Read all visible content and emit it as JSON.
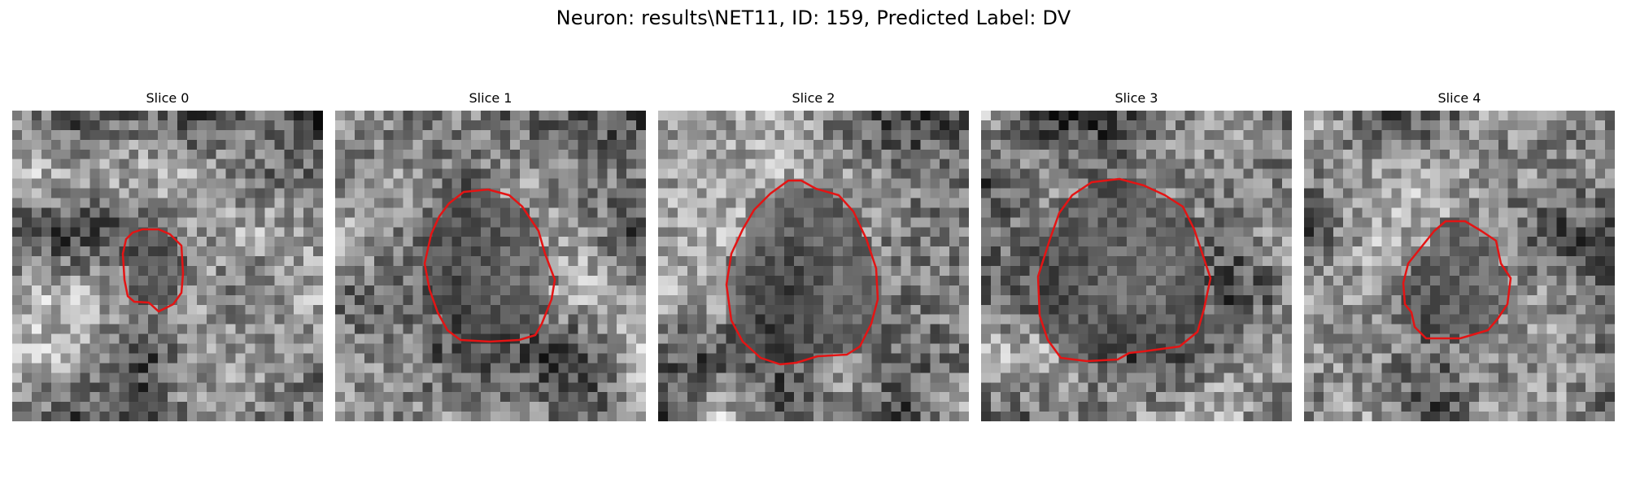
{
  "figure": {
    "title": "Neuron: results\\NET11, ID: 159, Predicted Label: DV",
    "contour_color": "#e41414"
  },
  "slices": [
    {
      "title": "Slice 0"
    },
    {
      "title": "Slice 1"
    },
    {
      "title": "Slice 2"
    },
    {
      "title": "Slice 3"
    },
    {
      "title": "Slice 4"
    }
  ]
}
